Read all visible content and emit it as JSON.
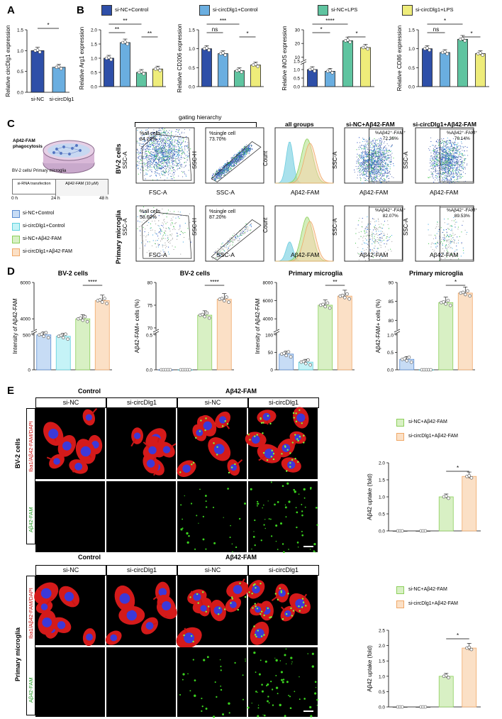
{
  "panels": {
    "A": "A",
    "B": "B",
    "C": "C",
    "D": "D",
    "E": "E"
  },
  "legend_B": [
    {
      "label": "si-NC+Control",
      "color": "#2e4fa8"
    },
    {
      "label": "si-circDlg1+Control",
      "color": "#6aaee0"
    },
    {
      "label": "si-NC+LPS",
      "color": "#5fc4a0"
    },
    {
      "label": "si-circDlg1+LPS",
      "color": "#eeec7a"
    }
  ],
  "chart_data": [
    {
      "id": "A",
      "type": "bar",
      "ylabel": "Relative circDlg1 expression",
      "categories": [
        "si-NC",
        "si-circDlg1"
      ],
      "values": [
        1.0,
        0.6
      ],
      "ylim": [
        0,
        1.5
      ],
      "yticks": [
        "0.0",
        "0.5",
        "1.0",
        "1.5"
      ],
      "significance": [
        "*"
      ]
    },
    {
      "id": "B1",
      "type": "bar",
      "ylabel": "Relative Arg1 expression",
      "categories": [
        "si-NC+Control",
        "si-circDlg1+Control",
        "si-NC+LPS",
        "si-circDlg1+LPS"
      ],
      "values": [
        1.0,
        1.55,
        0.5,
        0.62
      ],
      "ylim": [
        0,
        2.0
      ],
      "yticks": [
        "0.0",
        "0.5",
        "1.0",
        "1.5",
        "2.0"
      ],
      "significance": [
        "**",
        "**",
        "**"
      ]
    },
    {
      "id": "B2",
      "type": "bar",
      "ylabel": "Relative CD206 expression",
      "categories": [
        "si-NC+Control",
        "si-circDlg1+Control",
        "si-NC+LPS",
        "si-circDlg1+LPS"
      ],
      "values": [
        1.0,
        0.87,
        0.42,
        0.57
      ],
      "ylim": [
        0,
        1.5
      ],
      "yticks": [
        "0.0",
        "0.5",
        "1.0",
        "1.5"
      ],
      "significance": [
        "ns",
        "***",
        "*"
      ]
    },
    {
      "id": "B3",
      "type": "bar",
      "ylabel": "Relative iNOS expression",
      "categories": [
        "si-NC+Control",
        "si-circDlg1+Control",
        "si-NC+LPS",
        "si-circDlg1+LPS"
      ],
      "values": [
        1.0,
        0.9,
        22,
        17
      ],
      "yticks": [
        "0.0",
        "0.5",
        "1.0",
        "1.5",
        "10",
        "20",
        "30"
      ],
      "significance": [
        "*",
        "****",
        "*"
      ]
    },
    {
      "id": "B4",
      "type": "bar",
      "ylabel": "Relative CD86 expression",
      "categories": [
        "si-NC+Control",
        "si-circDlg1+Control",
        "si-NC+LPS",
        "si-circDlg1+LPS"
      ],
      "values": [
        1.0,
        0.9,
        1.25,
        0.87
      ],
      "ylim": [
        0,
        1.5
      ],
      "yticks": [
        "0.0",
        "0.5",
        "1.0",
        "1.5"
      ],
      "significance": [
        "ns",
        "*",
        "*"
      ]
    },
    {
      "id": "D1",
      "type": "bar",
      "title": "BV-2 cells",
      "ylabel": "Intensity of Aβ42-FAM",
      "values": [
        500,
        480,
        4000,
        5000
      ],
      "yticks": [
        "0",
        "500",
        "4000",
        "6000"
      ],
      "significance": [
        "****"
      ]
    },
    {
      "id": "D2",
      "type": "bar",
      "title": "BV-2 cells",
      "ylabel": "Aβ42-FAM+ cells (%)",
      "values": [
        0,
        0,
        72.8,
        76.3
      ],
      "yticks": [
        "0.0",
        "0.5",
        "70",
        "75",
        "80"
      ],
      "significance": [
        "****"
      ]
    },
    {
      "id": "D3",
      "type": "bar",
      "title": "Primary microglia",
      "ylabel": "Intensity of Aβ42-FAM",
      "values": [
        45,
        22,
        5500,
        6500
      ],
      "yticks": [
        "0",
        "50",
        "100",
        "4000",
        "6000",
        "8000"
      ],
      "significance": [
        "**"
      ]
    },
    {
      "id": "D4",
      "type": "bar",
      "title": "Primary microglia",
      "ylabel": "Aβ42-FAM+ cells (%)",
      "values": [
        0.3,
        0,
        84.7,
        87.2
      ],
      "yticks": [
        "0.0",
        "0.5",
        "1.0",
        "80",
        "85",
        "90"
      ],
      "significance": [
        "*"
      ]
    },
    {
      "id": "E1",
      "type": "bar",
      "ylabel": "Aβ42 uptake (fold)",
      "values": [
        0,
        0,
        1.0,
        1.6
      ],
      "ylim": [
        0,
        2.0
      ],
      "yticks": [
        "0.0",
        "0.5",
        "1.0",
        "1.5",
        "2.0"
      ],
      "significance": [
        "*"
      ]
    },
    {
      "id": "E2",
      "type": "bar",
      "ylabel": "Aβ42 uptake (fold)",
      "values": [
        0,
        0,
        1.0,
        1.92
      ],
      "ylim": [
        0,
        2.5
      ],
      "yticks": [
        "0.0",
        "0.5",
        "1.0",
        "1.5",
        "2.0",
        "2.5"
      ],
      "significance": [
        "*"
      ]
    }
  ],
  "panel_C": {
    "dish_title": "Aβ42-FAM phagocytosis",
    "timeline": {
      "row1": "BV-2 cells/ Primary microglia",
      "step1": "si-RNA transfection",
      "step2": "Aβ42-FAM (10 μM)",
      "t0": "0 h",
      "t1": "24 h",
      "t2": "48 h"
    },
    "legend": [
      {
        "label": "si-NC+Control",
        "color": "#c7dcf5"
      },
      {
        "label": "si-circDlg1+Control",
        "color": "#c5f3f7"
      },
      {
        "label": "si-NC+Aβ42-FAM",
        "color": "#d8f0c4"
      },
      {
        "label": "si-circDlg1+Aβ42-FAM",
        "color": "#fbe0c6"
      }
    ],
    "gating_title": "gating hierarchy",
    "col_titles": [
      "all groups",
      "si-NC+Aβ42-FAM",
      "si-circDlg1+Aβ42-FAM"
    ],
    "rows": [
      {
        "label": "BV-2 cells",
        "allcells": "%all cells\n84.20%",
        "single": "%single cell\n73.70%",
        "nc": "%Aβ42⁺-FAM⁺\n72.36%",
        "circ": "%Aβ42⁺-FAM⁺\n76.14%"
      },
      {
        "label": "Primary microglia",
        "allcells": "%all cells\n58.60%",
        "single": "%single cell\n87.20%",
        "nc": "%Aβ42⁺-FAM⁺\n82.07%",
        "circ": "%Aβ42⁺-FAM⁺\n89.53%"
      }
    ],
    "axes": {
      "fsc": "FSC-A",
      "ssc": "SSC-A",
      "ssch": "SSC-H",
      "count": "Count",
      "fam": "Aβ42-FAM"
    }
  },
  "panel_E": {
    "control": "Control",
    "ab": "Aβ42-FAM",
    "si_nc": "si-NC",
    "si_circ": "si-circDlg1",
    "bv2": "BV-2 cells",
    "primary": "Primary microglia",
    "stain_merge": "Iba1/Aβ42-FAM/DAPI",
    "stain_fam": "Aβ42-FAM",
    "legend": [
      {
        "label": "si-NC+Aβ42-FAM"
      },
      {
        "label": "si-circDlg1+Aβ42-FAM"
      }
    ]
  }
}
